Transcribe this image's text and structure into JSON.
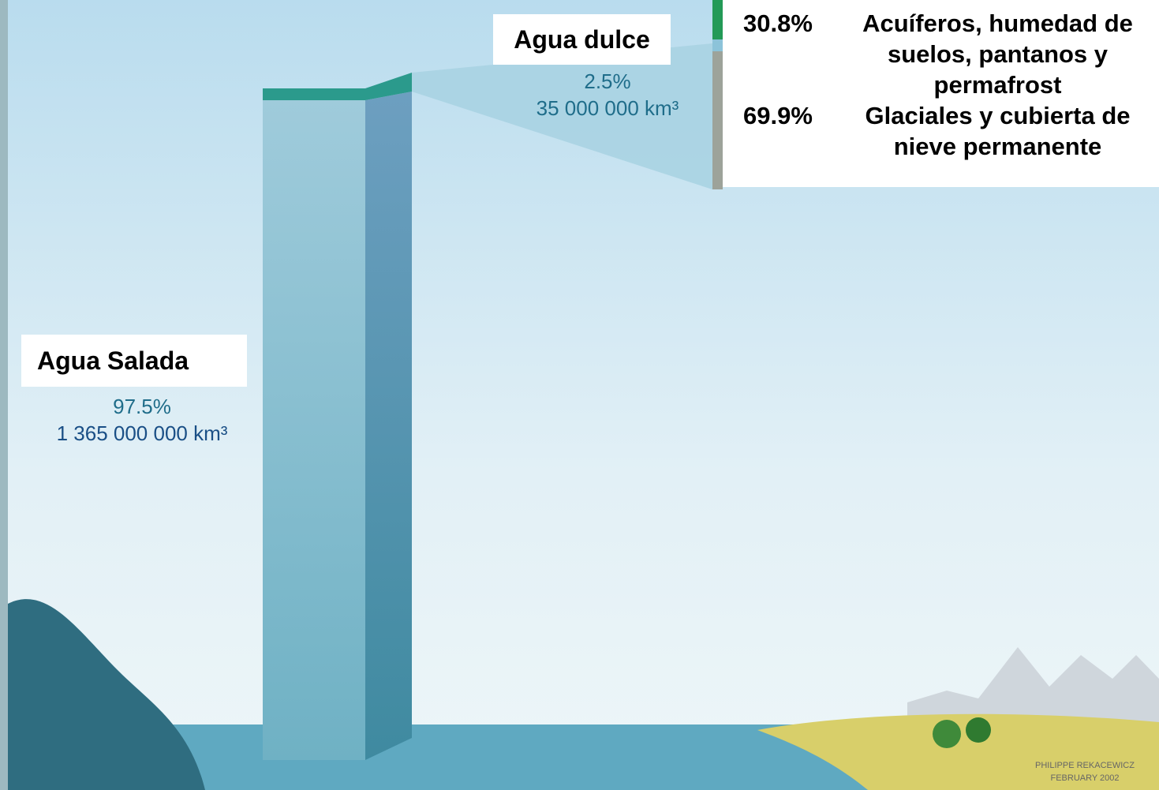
{
  "fresh_water": {
    "label": "Agua dulce",
    "percent": "2.5%",
    "volume": "35 000 000 km³"
  },
  "salt_water": {
    "label": "Agua Salada",
    "percent": "97.5%",
    "volume": "1 365 000 000 km³"
  },
  "fresh_breakdown": [
    {
      "percent": "30.8%",
      "text": "Acuíferos, humedad de suelos, pantanos y permafrost"
    },
    {
      "percent": "69.9%",
      "text": "Glaciales y cubierta de nieve permanente"
    }
  ],
  "credit": {
    "author": "PHILIPPE REKACEWICZ",
    "date": "FEBRUARY 2002"
  }
}
